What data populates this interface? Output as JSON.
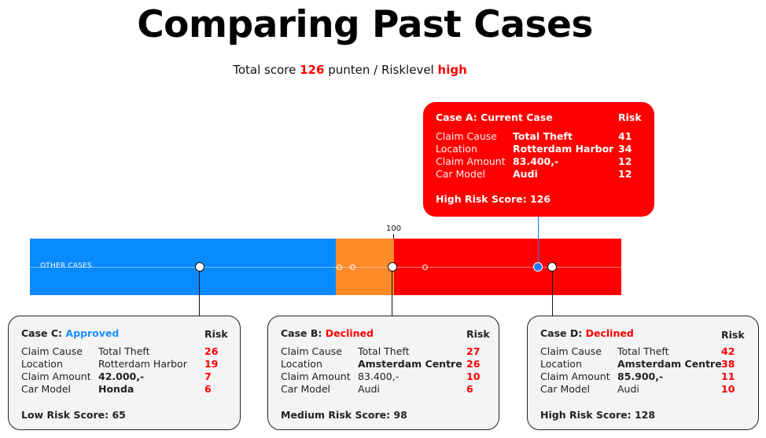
{
  "title": "Comparing Past Cases",
  "summary": {
    "prefix": "Total score",
    "score": "126",
    "unit": "punten /",
    "risk_label": "Risklevel",
    "risk_value": "high"
  },
  "scale": {
    "other_cases_label": "OTHER CASES",
    "marker_label": "100"
  },
  "colors": {
    "low": "#0a8aff",
    "medium": "#ff8a28",
    "high": "#ff0000",
    "approved": "#1a8cff",
    "declined": "#ff0000"
  },
  "cards": {
    "current": {
      "title": "Case A: Current Case",
      "risk_header": "Risk",
      "rows": [
        {
          "label": "Claim Cause",
          "value": "Total Theft",
          "risk": "41"
        },
        {
          "label": "Location",
          "value": "Rotterdam Harbor",
          "risk": "34"
        },
        {
          "label": "Claim Amount",
          "value": "83.400,-",
          "risk": "12"
        },
        {
          "label": "Car Model",
          "value": "Audi",
          "risk": "12"
        }
      ],
      "score": "High Risk Score: 126"
    },
    "case_c": {
      "title_prefix": "Case C:",
      "status": "Approved",
      "risk_header": "Risk",
      "rows": [
        {
          "label": "Claim Cause",
          "value": "Total Theft",
          "risk": "26"
        },
        {
          "label": "Location",
          "value": "Rotterdam Harbor",
          "risk": "19"
        },
        {
          "label": "Claim Amount",
          "value": "42.000,-",
          "risk": "7"
        },
        {
          "label": "Car Model",
          "value": "Honda",
          "risk": "6"
        }
      ],
      "score": "Low Risk Score: 65"
    },
    "case_b": {
      "title_prefix": "Case B:",
      "status": "Declined",
      "risk_header": "Risk",
      "rows": [
        {
          "label": "Claim Cause",
          "value": "Total Theft",
          "risk": "27"
        },
        {
          "label": "Location",
          "value": "Amsterdam Centre",
          "risk": "26"
        },
        {
          "label": "Claim Amount",
          "value": "83.400,-",
          "risk": "10"
        },
        {
          "label": "Car Model",
          "value": "Audi",
          "risk": "6"
        }
      ],
      "score": "Medium Risk Score: 98"
    },
    "case_d": {
      "title_prefix": "Case D:",
      "status": "Declined",
      "risk_header": "Risk",
      "rows": [
        {
          "label": "Claim Cause",
          "value": "Total Theft",
          "risk": "42"
        },
        {
          "label": "Location",
          "value": "Amsterdam Centre",
          "risk": "38"
        },
        {
          "label": "Claim Amount",
          "value": "85.900,-",
          "risk": "11"
        },
        {
          "label": "Car Model",
          "value": "Audi",
          "risk": "10"
        }
      ],
      "score": "High Risk Score: 128"
    }
  }
}
